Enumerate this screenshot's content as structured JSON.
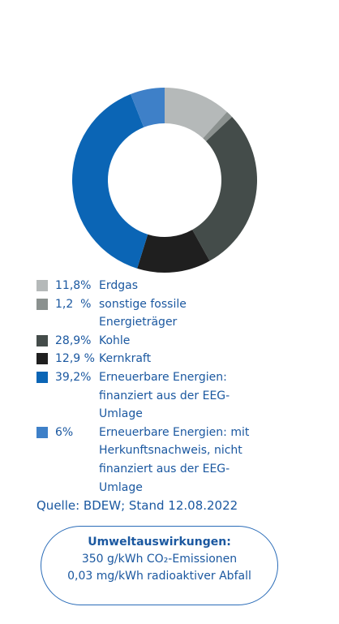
{
  "chart_data": {
    "type": "donut",
    "categories": [
      "Erdgas",
      "sonstige fossile Energieträger",
      "Kohle",
      "Kernkraft",
      "Erneuerbare Energien: finanziert aus der EEG-Umlage",
      "Erneuerbare Energien: mit Herkunftsnachweis, nicht finanziert aus der EEG-Umlage"
    ],
    "values": [
      11.8,
      1.2,
      28.9,
      12.9,
      39.2,
      6
    ],
    "value_labels": [
      "11,8%",
      "1,2  %",
      "28,9%",
      "12,9 %",
      "39,2%",
      "6%"
    ],
    "colors": [
      "#b5b9b9",
      "#8b918f",
      "#444c4a",
      "#1f1f1f",
      "#0b65b5",
      "#3e80c8"
    ],
    "source": "Quelle: BDEW; Stand 12.08.2022"
  },
  "info_box": {
    "title": "Umweltauswirkungen:",
    "lines": [
      "350 g/kWh CO₂-Emissionen",
      "0,03 mg/kWh radioaktiver Abfall"
    ]
  }
}
